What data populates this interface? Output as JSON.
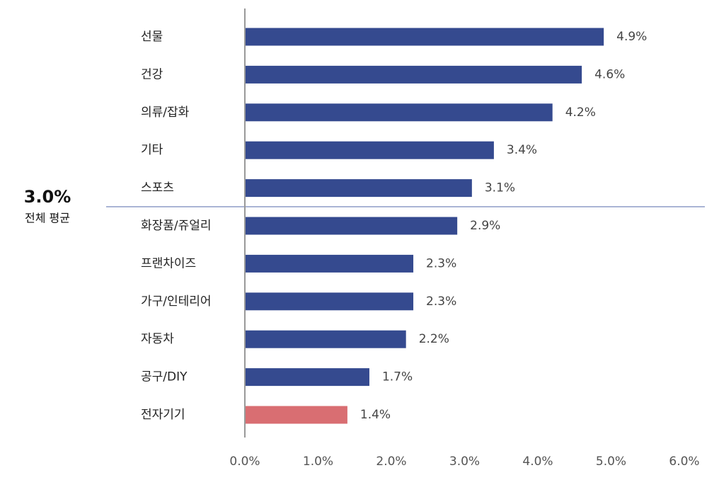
{
  "chart_data": {
    "type": "bar",
    "orientation": "horizontal",
    "title": "",
    "xlabel": "",
    "ylabel": "",
    "categories": [
      "선물",
      "건강",
      "의류/잡화",
      "기타",
      "스포츠",
      "화장품/쥬얼리",
      "프랜차이즈",
      "가구/인테리어",
      "자동차",
      "공구/DIY",
      "전자기기"
    ],
    "values": [
      4.9,
      4.6,
      4.2,
      3.4,
      3.1,
      2.9,
      2.3,
      2.3,
      2.2,
      1.7,
      1.4
    ],
    "value_labels": [
      "4.9%",
      "4.6%",
      "4.2%",
      "3.4%",
      "3.1%",
      "2.9%",
      "2.3%",
      "2.3%",
      "2.2%",
      "1.7%",
      "1.4%"
    ],
    "colors": [
      "#354a8f",
      "#354a8f",
      "#354a8f",
      "#354a8f",
      "#354a8f",
      "#354a8f",
      "#354a8f",
      "#354a8f",
      "#354a8f",
      "#354a8f",
      "#d96e72"
    ],
    "xlim": [
      0,
      6
    ],
    "x_ticks": [
      "0.0%",
      "1.0%",
      "2.0%",
      "3.0%",
      "4.0%",
      "5.0%",
      "6.0%"
    ],
    "grid": false,
    "legend": "none",
    "reference_line": {
      "value_label": "3.0%",
      "label": "전체 평균",
      "color": "#8e9cc7"
    }
  }
}
